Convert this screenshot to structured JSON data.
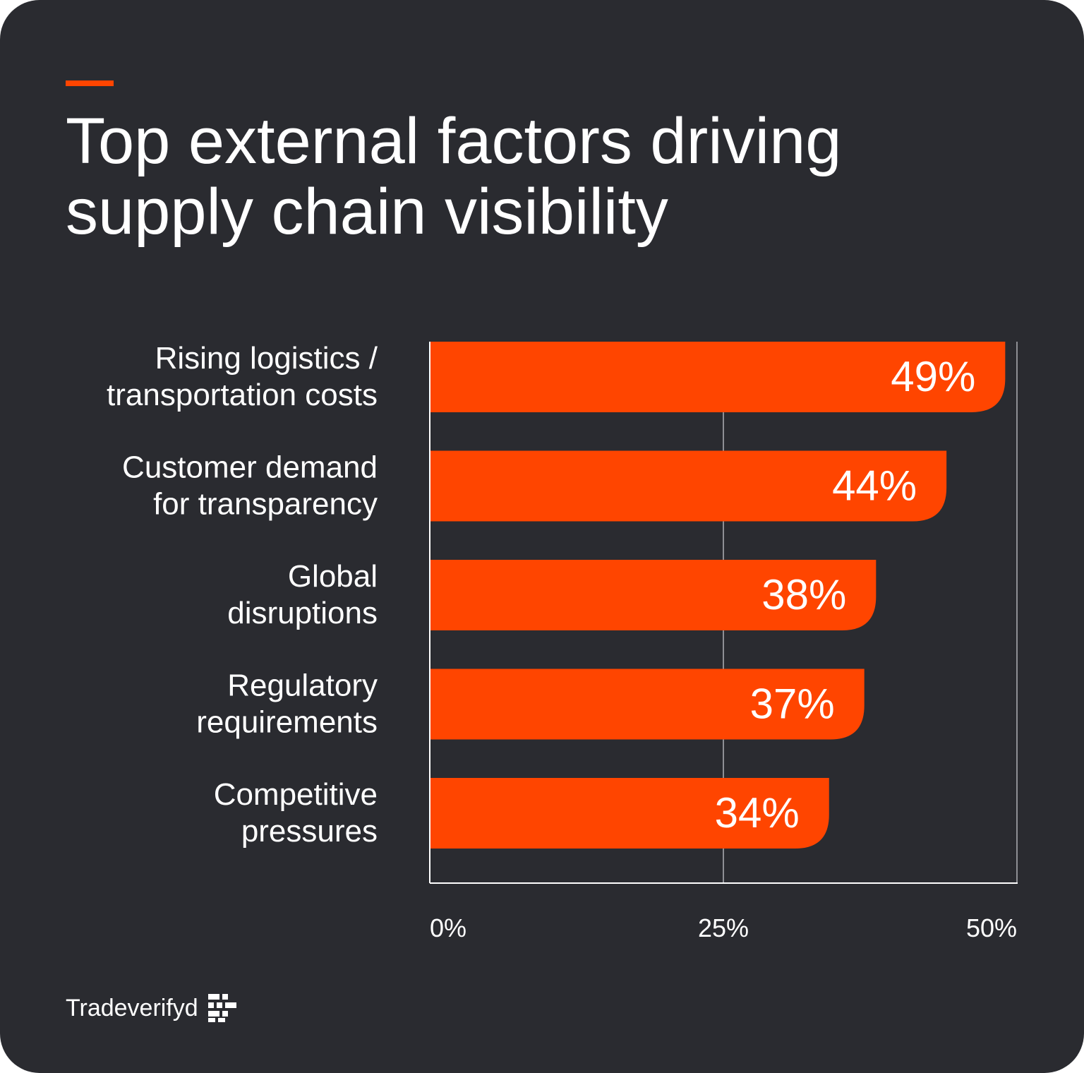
{
  "title": "Top external factors driving supply chain visibility",
  "brand": {
    "name": "Tradeverifyd",
    "accent_color": "#ff4500",
    "background_color": "#2a2b30"
  },
  "chart_data": {
    "type": "bar",
    "orientation": "horizontal",
    "title": "Top external factors driving supply chain visibility",
    "categories": [
      [
        "Rising logistics /",
        "transportation costs"
      ],
      [
        "Customer demand",
        "for transparency"
      ],
      [
        "Global",
        "disruptions"
      ],
      [
        "Regulatory",
        "requirements"
      ],
      [
        "Competitive",
        "pressures"
      ]
    ],
    "values": [
      49,
      44,
      38,
      37,
      34
    ],
    "value_labels": [
      "49%",
      "44%",
      "38%",
      "37%",
      "34%"
    ],
    "xlim": [
      0,
      50
    ],
    "xticks": [
      0,
      25,
      50
    ],
    "xtick_labels": [
      "0%",
      "25%",
      "50%"
    ],
    "grid": true,
    "bar_color": "#ff4500"
  }
}
